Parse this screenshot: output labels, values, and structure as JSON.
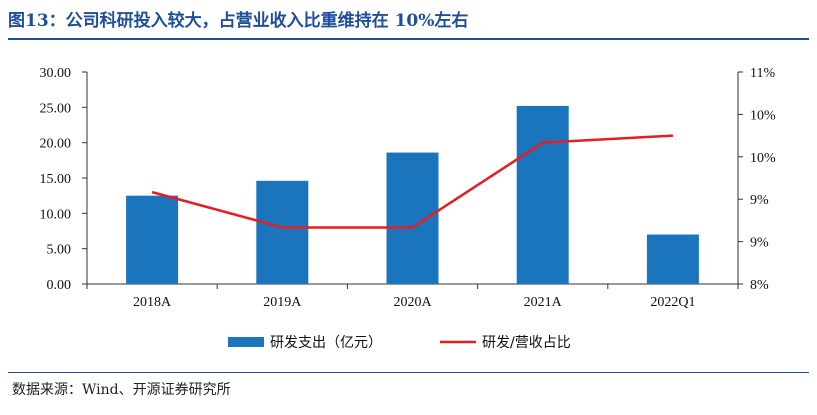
{
  "title": "图13：公司科研投入较大，占营业收入比重维持在 10%左右",
  "source": "数据来源：Wind、开源证券研究所",
  "chart_data": {
    "type": "bar",
    "categories": [
      "2018A",
      "2019A",
      "2020A",
      "2021A",
      "2022Q1"
    ],
    "series": [
      {
        "name": "研发支出（亿元）",
        "type": "bar",
        "axis": "left",
        "color": "#1a75bc",
        "values": [
          12.5,
          14.6,
          18.6,
          25.2,
          7.0
        ]
      },
      {
        "name": "研发/营收占比",
        "type": "line",
        "axis": "right",
        "color": "#e81c24",
        "values": [
          9.3,
          8.8,
          8.8,
          10.0,
          10.1
        ]
      }
    ],
    "ylim_left": [
      0,
      30
    ],
    "yticks_left": [
      "0.00",
      "5.00",
      "10.00",
      "15.00",
      "20.00",
      "25.00",
      "30.00"
    ],
    "ylim_right": [
      8,
      11
    ],
    "yticks_right": [
      "8%",
      "9%",
      "9%",
      "10%",
      "10%",
      "11%"
    ],
    "grid": false,
    "legend_position": "bottom"
  }
}
